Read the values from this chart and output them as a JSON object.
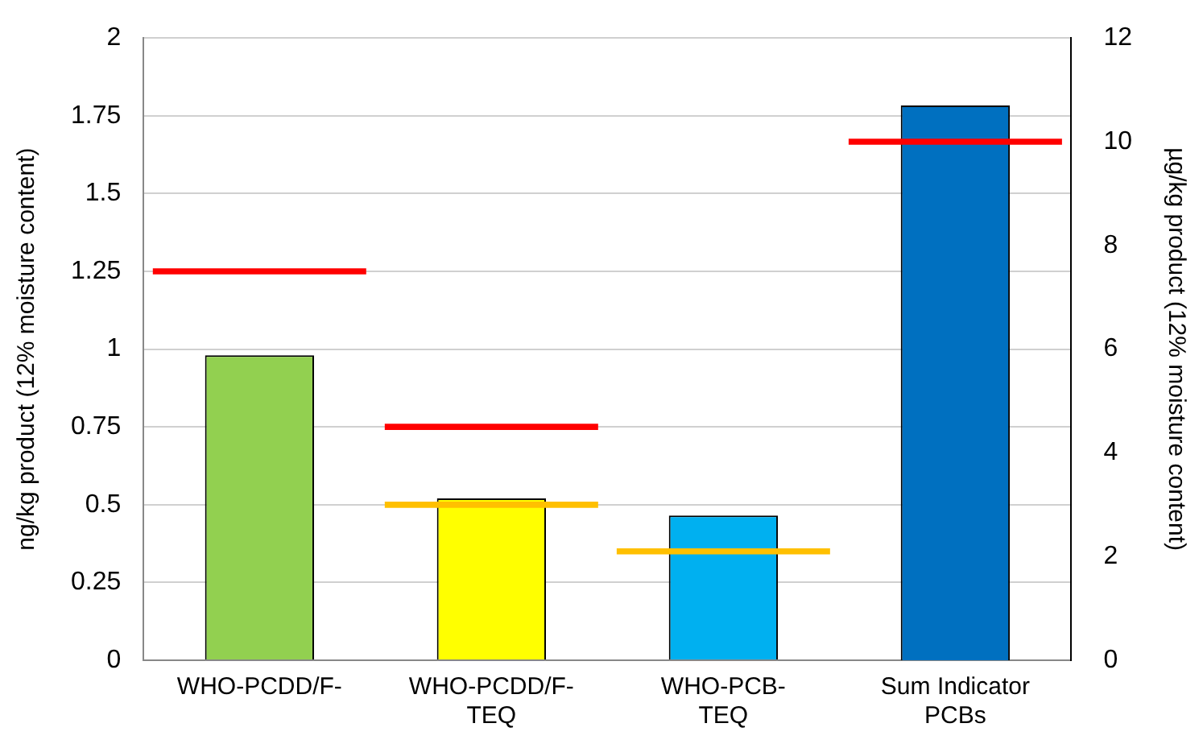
{
  "chart_data": {
    "type": "bar",
    "ylabel": "ng/kg product (12% moisture content)",
    "y2label": "µg/kg product (12% moisture content)",
    "categories": [
      "WHO-PCDD/F-",
      "WHO-PCDD/F-TEQ",
      "WHO-PCB-TEQ",
      "Sum Indicator PCBs"
    ],
    "series": [
      {
        "colors": [
          "#92d050",
          "#ffff00",
          "#00b0f0",
          null
        ],
        "values": [
          0.98,
          0.52,
          0.465,
          null
        ]
      },
      {
        "axis": "y2",
        "color": "#0070c0",
        "values": [
          null,
          null,
          null,
          10.7
        ]
      },
      {
        "color": "#ff0000",
        "base": [
          1.24,
          0.74,
          null,
          null
        ],
        "values": [
          0.02,
          0.02,
          null,
          null
        ]
      },
      {
        "axis": "y2",
        "color": "#ff0000",
        "base": [
          null,
          null,
          null,
          9.94
        ],
        "values": [
          null,
          null,
          null,
          0.12
        ]
      },
      {
        "color": "#ffc000",
        "base": [
          null,
          0.49,
          0.34,
          null
        ],
        "values": [
          null,
          0.02,
          0.02,
          null
        ]
      }
    ],
    "ylim": [
      0,
      2
    ],
    "yticks": [
      0,
      0.25,
      0.5,
      0.75,
      1,
      1.25,
      1.5,
      1.75,
      2
    ],
    "y2lim": [
      0,
      12
    ],
    "y2ticks": [
      0,
      2,
      4,
      6,
      8,
      10,
      12
    ],
    "grid": "y",
    "legend": false
  }
}
